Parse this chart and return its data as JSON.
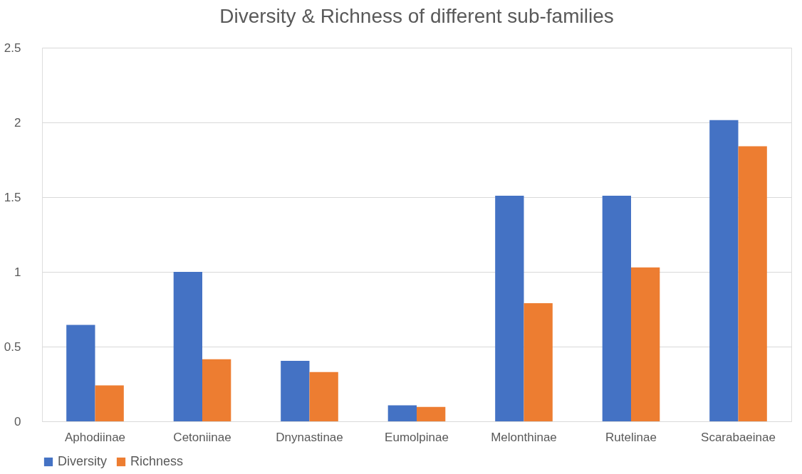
{
  "chart_data": {
    "type": "bar",
    "title": "Diversity & Richness of different sub-families",
    "categories": [
      "Aphodiinae",
      "Cetoniinae",
      "Dnynastinae",
      "Eumolpinae",
      "Melonthinae",
      "Rutelinae",
      "Scarabaeinae"
    ],
    "series": [
      {
        "name": "Diversity",
        "color": "#4472c4",
        "values": [
          0.645,
          1.0,
          0.405,
          0.107,
          1.51,
          1.51,
          2.015
        ]
      },
      {
        "name": "Richness",
        "color": "#ed7d31",
        "values": [
          0.24,
          0.415,
          0.33,
          0.096,
          0.79,
          1.03,
          1.84
        ]
      }
    ],
    "ylim": [
      0,
      2.5
    ],
    "yticks": [
      0,
      0.5,
      1,
      1.5,
      2,
      2.5
    ],
    "grid": "y",
    "legend": "bottom"
  }
}
